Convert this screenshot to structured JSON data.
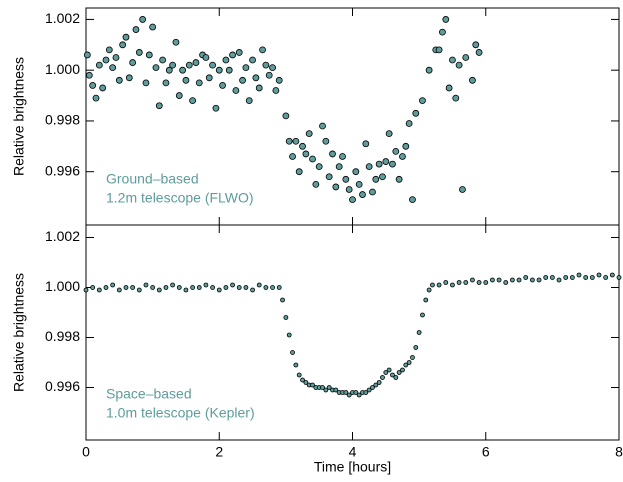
{
  "chart_data": [
    {
      "type": "scatter",
      "ylabel": "Relative brightness",
      "annotation": [
        "Ground–based",
        "1.2m telescope (FLWO)"
      ],
      "color": "#5f9c9c",
      "annotation_color": "#5f9c9c",
      "marker_size": 3,
      "xlim": [
        0,
        8
      ],
      "xticks": [
        0,
        2,
        4,
        6,
        8
      ],
      "show_xtick_labels": false,
      "ylim": [
        0.9939,
        1.00245
      ],
      "yticks": [
        {
          "value": 1.002,
          "label": "1.002"
        },
        {
          "value": 1.0,
          "label": "1.000"
        },
        {
          "value": 0.998,
          "label": "0.998"
        },
        {
          "value": 0.996,
          "label": "0.996"
        }
      ],
      "x": [
        0.02,
        0.05,
        0.1,
        0.15,
        0.2,
        0.25,
        0.3,
        0.35,
        0.4,
        0.45,
        0.5,
        0.55,
        0.6,
        0.65,
        0.7,
        0.75,
        0.8,
        0.85,
        0.9,
        0.95,
        1.0,
        1.05,
        1.1,
        1.15,
        1.2,
        1.25,
        1.3,
        1.35,
        1.4,
        1.45,
        1.5,
        1.55,
        1.6,
        1.65,
        1.7,
        1.75,
        1.8,
        1.85,
        1.9,
        1.95,
        2.0,
        2.05,
        2.1,
        2.15,
        2.2,
        2.25,
        2.3,
        2.35,
        2.4,
        2.45,
        2.5,
        2.55,
        2.6,
        2.65,
        2.7,
        2.75,
        2.8,
        2.85,
        2.9,
        3.0,
        3.05,
        3.1,
        3.15,
        3.2,
        3.25,
        3.3,
        3.35,
        3.4,
        3.45,
        3.5,
        3.55,
        3.6,
        3.65,
        3.7,
        3.75,
        3.8,
        3.85,
        3.9,
        3.95,
        4.0,
        4.05,
        4.1,
        4.15,
        4.2,
        4.25,
        4.3,
        4.35,
        4.4,
        4.45,
        4.5,
        4.55,
        4.6,
        4.65,
        4.7,
        4.75,
        4.8,
        4.85,
        4.9,
        4.95,
        5.05,
        5.15,
        5.25,
        5.3,
        5.35,
        5.4,
        5.45,
        5.5,
        5.55,
        5.6,
        5.65,
        5.7,
        5.8,
        5.85,
        5.9
      ],
      "values": [
        1.0006,
        0.9998,
        0.9994,
        0.9989,
        1.0002,
        0.9993,
        1.0004,
        1.0008,
        1.0001,
        1.0005,
        0.9996,
        1.001,
        1.0013,
        0.9997,
        1.0003,
        1.0016,
        1.0007,
        1.002,
        0.9995,
        1.0006,
        1.0017,
        1.0001,
        0.9986,
        1.0004,
        0.9995,
        1.0,
        1.0002,
        1.0011,
        0.999,
        1.0,
        0.9996,
        1.0002,
        0.9988,
        1.0003,
        0.9995,
        1.0006,
        1.0005,
        0.9997,
        1.0002,
        0.9985,
        1.0,
        0.9994,
        1.0004,
        1.0,
        1.0006,
        0.9992,
        1.0007,
        0.9996,
        1.0001,
        0.9988,
        1.0004,
        0.9997,
        0.9993,
        1.0008,
        1.0002,
        0.9998,
        1.0001,
        0.9992,
        0.9996,
        0.9982,
        0.9972,
        0.9966,
        0.9972,
        0.996,
        0.997,
        0.9967,
        0.9975,
        0.9965,
        0.9955,
        0.9962,
        0.9978,
        0.9972,
        0.9958,
        0.9967,
        0.9954,
        0.9962,
        0.9966,
        0.9957,
        0.9953,
        0.9949,
        0.996,
        0.9955,
        0.9951,
        0.9971,
        0.9962,
        0.9952,
        0.9957,
        0.9963,
        0.9958,
        0.9964,
        0.9975,
        0.9963,
        0.9968,
        0.9957,
        0.9966,
        0.997,
        0.9979,
        0.9949,
        0.9983,
        0.9988,
        1.0,
        1.0008,
        1.0008,
        1.0015,
        1.002,
        0.9993,
        1.0004,
        0.9989,
        1.0002,
        0.9953,
        1.0005,
        0.9996,
        1.001,
        1.0007
      ]
    },
    {
      "type": "scatter",
      "ylabel": "Relative brightness",
      "xlabel": "Time [hours]",
      "annotation": [
        "Space–based",
        "1.0m telescope (Kepler)"
      ],
      "color": "#5f9c9c",
      "annotation_color": "#5f9c9c",
      "marker_size": 2,
      "xlim": [
        0,
        8
      ],
      "xticks": [
        0,
        2,
        4,
        6,
        8
      ],
      "show_xtick_labels": true,
      "ylim": [
        0.9939,
        1.0025
      ],
      "yticks": [
        {
          "value": 1.002,
          "label": "1.002"
        },
        {
          "value": 1.0,
          "label": "1.000"
        },
        {
          "value": 0.998,
          "label": "0.998"
        },
        {
          "value": 0.996,
          "label": "0.996"
        }
      ],
      "x": [
        0,
        0.1,
        0.2,
        0.3,
        0.4,
        0.5,
        0.6,
        0.7,
        0.8,
        0.9,
        1.0,
        1.1,
        1.2,
        1.3,
        1.4,
        1.5,
        1.6,
        1.7,
        1.8,
        1.9,
        2.0,
        2.1,
        2.2,
        2.3,
        2.4,
        2.5,
        2.6,
        2.7,
        2.8,
        2.9,
        2.95,
        3.0,
        3.05,
        3.1,
        3.15,
        3.2,
        3.25,
        3.3,
        3.35,
        3.4,
        3.45,
        3.5,
        3.55,
        3.6,
        3.65,
        3.7,
        3.75,
        3.8,
        3.85,
        3.9,
        3.95,
        4.0,
        4.05,
        4.1,
        4.15,
        4.2,
        4.25,
        4.3,
        4.35,
        4.4,
        4.45,
        4.5,
        4.55,
        4.6,
        4.65,
        4.7,
        4.75,
        4.8,
        4.85,
        4.9,
        4.95,
        5.0,
        5.05,
        5.1,
        5.15,
        5.2,
        5.3,
        5.4,
        5.5,
        5.6,
        5.7,
        5.8,
        5.9,
        6.0,
        6.1,
        6.2,
        6.3,
        6.4,
        6.5,
        6.6,
        6.7,
        6.8,
        6.9,
        7.0,
        7.1,
        7.2,
        7.3,
        7.4,
        7.5,
        7.6,
        7.7,
        7.8,
        7.9,
        8.0
      ],
      "values": [
        0.9999,
        1.0,
        0.9999,
        1.0,
        1.0001,
        0.9999,
        1.0,
        1.0,
        0.9999,
        1.0001,
        1.0,
        0.9999,
        1.0,
        1.0001,
        1.0,
        0.9999,
        1.0,
        1.0,
        1.0001,
        1.0,
        0.9999,
        1.0,
        1.0001,
        1.0,
        1.0,
        0.9999,
        1.0001,
        1.0,
        1.0,
        1.0,
        0.9995,
        0.9988,
        0.9981,
        0.9974,
        0.9969,
        0.9965,
        0.9963,
        0.9962,
        0.9961,
        0.9961,
        0.996,
        0.996,
        0.996,
        0.9959,
        0.996,
        0.9959,
        0.9959,
        0.9958,
        0.9958,
        0.9958,
        0.9957,
        0.9958,
        0.9958,
        0.9957,
        0.9958,
        0.9958,
        0.9959,
        0.996,
        0.9961,
        0.9962,
        0.9964,
        0.9966,
        0.9967,
        0.9965,
        0.9964,
        0.9966,
        0.9967,
        0.9969,
        0.997,
        0.9972,
        0.9976,
        0.9982,
        0.9989,
        0.9995,
        0.9999,
        1.0001,
        1.0001,
        1.0002,
        1.0001,
        1.0002,
        1.0002,
        1.0003,
        1.0002,
        1.0002,
        1.0003,
        1.0003,
        1.0002,
        1.0003,
        1.0003,
        1.0004,
        1.0003,
        1.0003,
        1.0004,
        1.0004,
        1.0003,
        1.0004,
        1.0004,
        1.0005,
        1.0004,
        1.0004,
        1.0005,
        1.0004,
        1.0005,
        1.0004
      ]
    }
  ]
}
